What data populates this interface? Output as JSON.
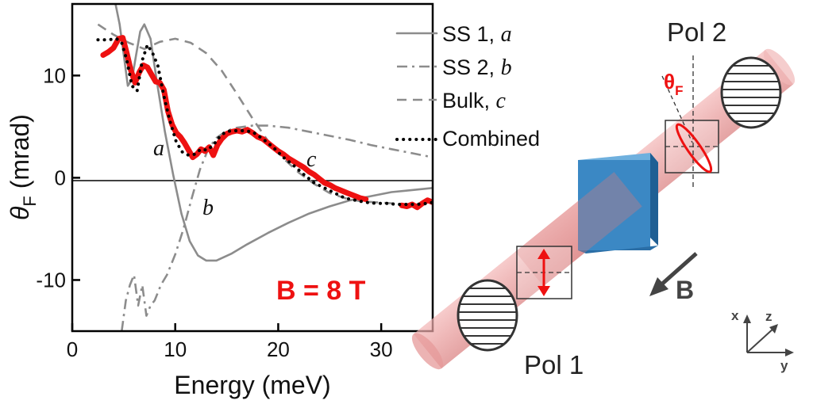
{
  "chart_data": {
    "type": "line",
    "xlabel": "Energy (meV)",
    "ylabel_symbol": "θ",
    "ylabel_sub": "F",
    "ylabel_unit": " (mrad)",
    "xlim": [
      0,
      35
    ],
    "ylim": [
      -15,
      17
    ],
    "x_ticks": [
      0,
      10,
      20,
      30
    ],
    "y_ticks": [
      -10,
      0,
      10
    ],
    "zero_line": true,
    "grid": false,
    "legend_position": "top-right, outside plot",
    "annotation": "B = 8 T",
    "curve_labels": {
      "a": "a",
      "b": "b",
      "c": "c"
    },
    "series": [
      {
        "key": "ss1",
        "name": "SS 1,",
        "curve_label": "a",
        "color": "#8c8c8c",
        "style": "solid",
        "x": [
          4.2,
          4.6,
          5.0,
          5.4,
          5.8,
          6.2,
          6.6,
          7.0,
          7.6,
          8.2,
          9.0,
          9.8,
          10.6,
          11.4,
          12.2,
          13.0,
          14.0,
          15.5,
          17,
          19,
          21,
          23,
          25,
          27,
          29,
          31,
          33,
          35
        ],
        "y": [
          17,
          15,
          12,
          9,
          9.6,
          12,
          14.3,
          15,
          13.6,
          9.5,
          4.5,
          0.3,
          -3.5,
          -6.2,
          -7.6,
          -8.1,
          -8.1,
          -7.4,
          -6.5,
          -5.4,
          -4.4,
          -3.5,
          -2.8,
          -2.2,
          -1.8,
          -1.4,
          -1.2,
          -1.0
        ]
      },
      {
        "key": "ss2",
        "name": "SS 2,",
        "curve_label": "b",
        "color": "#8c8c8c",
        "style": "dashdot",
        "x": [
          4.8,
          5.2,
          5.6,
          6.0,
          6.4,
          6.8,
          7.2,
          7.6,
          8.0,
          8.6,
          9.2,
          10.0,
          10.8,
          11.6,
          12.4,
          13.2,
          14.0,
          15.0,
          16.0,
          17.5,
          19,
          21,
          23,
          25,
          27,
          29,
          31,
          33,
          35
        ],
        "y": [
          -15,
          -12,
          -10.5,
          -9.5,
          -12.5,
          -10.5,
          -13.5,
          -12.5,
          -12,
          -10.5,
          -9.5,
          -7.5,
          -5,
          -2,
          0.8,
          2.8,
          3.9,
          4.6,
          4.9,
          5.1,
          5.1,
          4.9,
          4.5,
          4.1,
          3.7,
          3.2,
          2.8,
          2.4,
          2.0
        ]
      },
      {
        "key": "bulk",
        "name": "Bulk,",
        "curve_label": "c",
        "color": "#8c8c8c",
        "style": "dashed",
        "x": [
          2.5,
          4,
          5.5,
          7,
          8.5,
          10,
          11.5,
          13,
          14.5,
          16,
          17.5,
          19,
          20.5,
          22,
          23.5,
          25,
          26.5,
          28,
          29.5,
          31,
          32.5,
          34,
          35
        ],
        "y": [
          15,
          14,
          13.2,
          12.6,
          13.3,
          13.6,
          13.2,
          12.2,
          10.5,
          8.2,
          5.8,
          3.6,
          1.9,
          0.5,
          -0.6,
          -1.5,
          -2.0,
          -2.3,
          -2.4,
          -2.5,
          -2.6,
          -2.6,
          -2.6
        ]
      },
      {
        "key": "combined",
        "name": "Combined",
        "curve_label": "",
        "color": "#000000",
        "style": "dotted",
        "x": [
          2.5,
          3.5,
          4.3,
          4.8,
          5.3,
          5.8,
          6.3,
          6.8,
          7.3,
          7.8,
          8.3,
          8.9,
          9.5,
          10.1,
          10.7,
          11.3,
          11.9,
          12.5,
          13.1,
          13.7,
          14.3,
          14.9,
          15.5,
          16.5,
          17.5,
          18.5,
          19.5,
          20.5,
          21.5,
          22.5,
          23.5,
          24.5,
          25.5,
          26.5,
          27.5,
          28.5,
          29.5,
          30.5,
          31.5,
          32.5,
          33.5,
          34.5,
          35
        ],
        "y": [
          13.5,
          13.5,
          13.6,
          13.2,
          11.5,
          9.0,
          8.5,
          11.5,
          13.0,
          12.2,
          11.0,
          8.0,
          5.5,
          3.5,
          2.5,
          2.2,
          2.3,
          2.8,
          2.7,
          3.2,
          4.0,
          4.5,
          4.6,
          4.6,
          4.5,
          3.8,
          3.0,
          2.0,
          1.2,
          0.3,
          -0.5,
          -1.0,
          -1.5,
          -2.0,
          -2.2,
          -2.4,
          -2.5,
          -2.5,
          -2.6,
          -2.6,
          -2.6,
          -2.5,
          -2.4
        ]
      },
      {
        "key": "data",
        "name": "",
        "curve_label": "",
        "color": "#ee1111",
        "style": "thick",
        "x": [
          3.0,
          3.5,
          4.0,
          4.5,
          4.9,
          5.3,
          5.7,
          6.1,
          6.5,
          6.9,
          7.3,
          7.7,
          8.1,
          8.5,
          8.9,
          9.3,
          9.7,
          10.1,
          10.5,
          10.9,
          11.3,
          11.7,
          12.1,
          12.5,
          12.9,
          13.3,
          13.7,
          14.1,
          14.5,
          15.0,
          15.5,
          16.0,
          16.5,
          17.0,
          17.5,
          18.0,
          18.5,
          19.0,
          19.5,
          20.0,
          20.5,
          21.0,
          21.5,
          22.0,
          22.5,
          23.0,
          23.5,
          24.0,
          24.5,
          25.0,
          25.5,
          26.0,
          26.5,
          27.0,
          27.5,
          28.0,
          28.5
        ],
        "y": [
          12.0,
          12.3,
          12.7,
          13.6,
          13.7,
          12.2,
          10.5,
          9.3,
          10.3,
          11.0,
          10.8,
          10.1,
          9.4,
          9.3,
          8.6,
          6.5,
          5.2,
          4.4,
          4.0,
          3.4,
          2.7,
          2.0,
          2.3,
          2.8,
          2.6,
          3.0,
          2.2,
          3.2,
          3.8,
          4.3,
          4.5,
          4.6,
          4.5,
          4.7,
          4.4,
          4.0,
          3.8,
          3.4,
          3.0,
          2.6,
          2.3,
          1.9,
          1.6,
          1.3,
          1.0,
          0.6,
          0.3,
          -0.1,
          -0.5,
          -0.7,
          -1.0,
          -1.2,
          -1.4,
          -1.6,
          -1.8,
          -2.0,
          -2.1
        ]
      },
      {
        "key": "data_tail",
        "name": "",
        "curve_label": "",
        "color": "#ee1111",
        "style": "thick",
        "x": [
          32.0,
          32.5,
          33.0,
          33.5,
          34.0,
          34.5,
          35
        ],
        "y": [
          -2.7,
          -2.8,
          -2.6,
          -2.9,
          -2.5,
          -2.2,
          -2.4
        ]
      }
    ]
  },
  "schematic": {
    "pol1_label": "Pol 1",
    "pol2_label": "Pol 2",
    "theta_symbol": "θ",
    "theta_sub": "F",
    "field_label": "B",
    "axes": {
      "x": "x",
      "y": "y",
      "z": "z"
    },
    "sample_color": "#3b88c4",
    "beam_color": "#e88a8a"
  }
}
